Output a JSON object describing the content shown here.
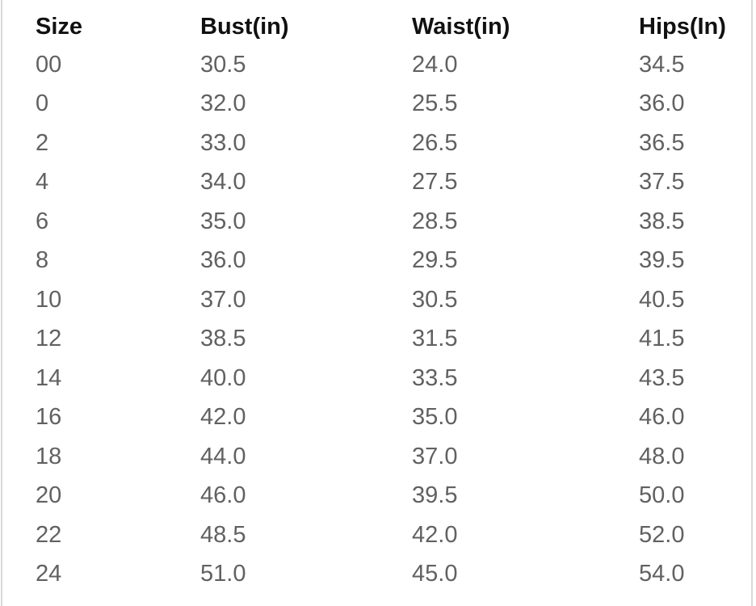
{
  "colors": {
    "background": "#ffffff",
    "header_text": "#111111",
    "cell_text": "#616161",
    "border": "#d9d9d9"
  },
  "table": {
    "columns": [
      {
        "key": "size",
        "label": "Size"
      },
      {
        "key": "bust",
        "label": "Bust(in)"
      },
      {
        "key": "waist",
        "label": "Waist(in)"
      },
      {
        "key": "hips",
        "label": "Hips(In)"
      }
    ],
    "rows": [
      [
        "00",
        "30.5",
        "24.0",
        "34.5"
      ],
      [
        "0",
        "32.0",
        "25.5",
        "36.0"
      ],
      [
        "2",
        "33.0",
        "26.5",
        "36.5"
      ],
      [
        "4",
        "34.0",
        "27.5",
        "37.5"
      ],
      [
        "6",
        "35.0",
        "28.5",
        "38.5"
      ],
      [
        "8",
        "36.0",
        "29.5",
        "39.5"
      ],
      [
        "10",
        "37.0",
        "30.5",
        "40.5"
      ],
      [
        "12",
        "38.5",
        "31.5",
        "41.5"
      ],
      [
        "14",
        "40.0",
        "33.5",
        "43.5"
      ],
      [
        "16",
        "42.0",
        "35.0",
        "46.0"
      ],
      [
        "18",
        "44.0",
        "37.0",
        "48.0"
      ],
      [
        "20",
        "46.0",
        "39.5",
        "50.0"
      ],
      [
        "22",
        "48.5",
        "42.0",
        "52.0"
      ],
      [
        "24",
        "51.0",
        "45.0",
        "54.0"
      ]
    ]
  }
}
